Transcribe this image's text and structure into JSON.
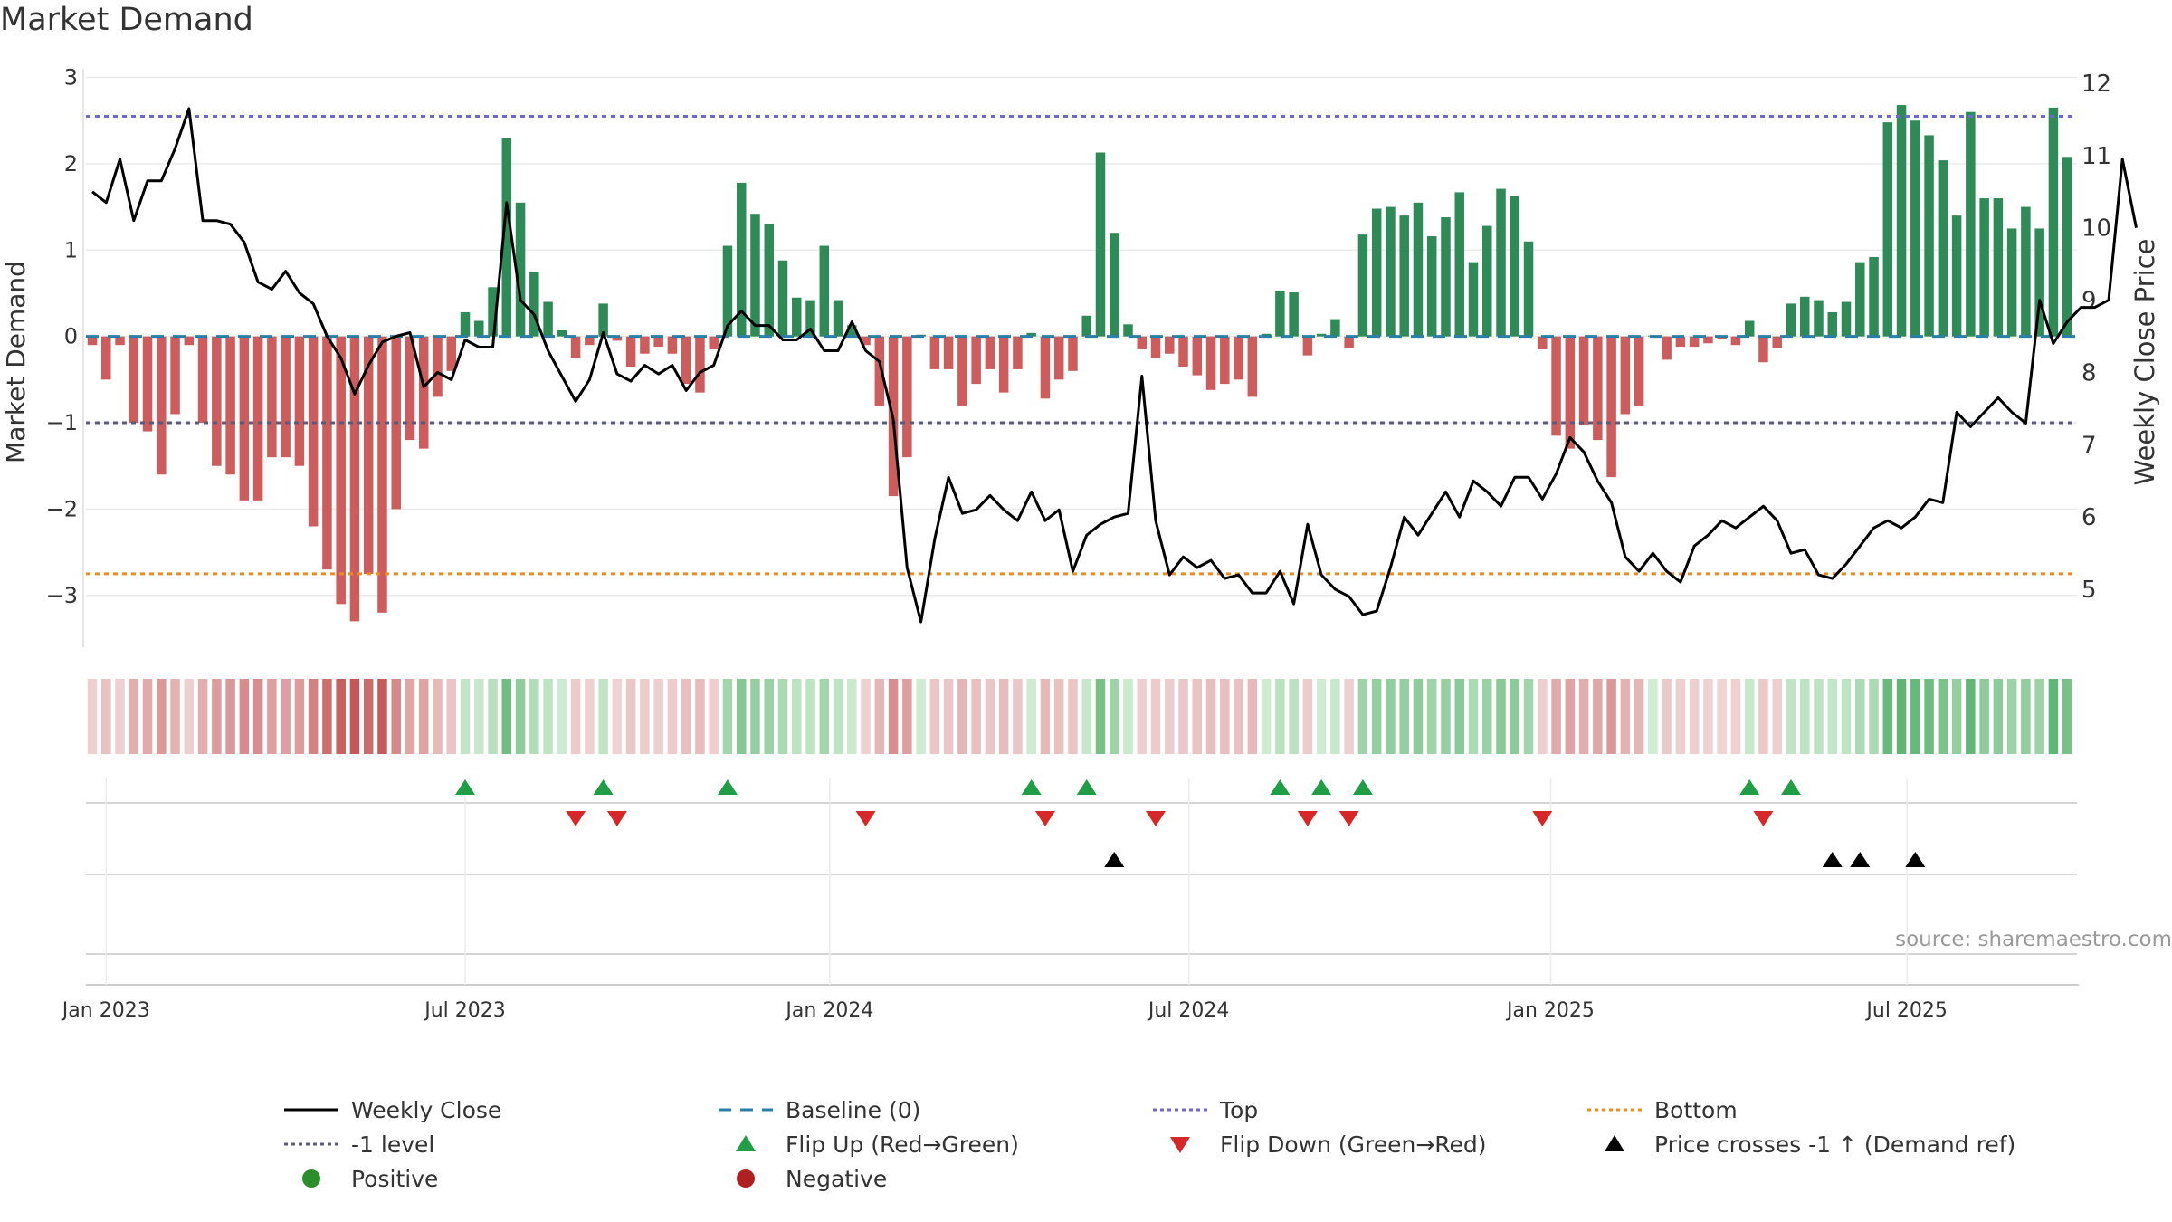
{
  "title": "Market Demand",
  "source": "source: sharemaestro.com",
  "chart_data": {
    "type": "bar+line",
    "title": "Market Demand",
    "start_date": "2022-12-26",
    "weeks": 146,
    "left_axis": {
      "label": "Market Demand",
      "lim": [
        -3.6,
        3.1
      ],
      "ticks": [
        3,
        2,
        1,
        0,
        -1,
        -2,
        -3
      ],
      "tick_labels": [
        "3",
        "2",
        "1",
        "0",
        "−1",
        "−2",
        "−3"
      ]
    },
    "right_axis": {
      "label": "Weekly Close Price",
      "lim": [
        4.2,
        12.2
      ],
      "ticks": [
        5,
        6,
        7,
        8,
        9,
        10,
        11,
        12
      ],
      "tick_labels": [
        "5",
        "6",
        "7",
        "8",
        "9",
        "10",
        "11",
        "12"
      ]
    },
    "x_ticks": [
      {
        "label": "Jan 2023",
        "week": 1
      },
      {
        "label": "Jul 2023",
        "week": 27
      },
      {
        "label": "Jan 2024",
        "week": 53.4
      },
      {
        "label": "Jul 2024",
        "week": 79.4
      },
      {
        "label": "Jan 2025",
        "week": 105.6
      },
      {
        "label": "Jul 2025",
        "week": 131.4
      }
    ],
    "reference_lines": {
      "top": 2.55,
      "bottom": -2.75,
      "minus_one": -1,
      "baseline": 0
    },
    "demand": [
      -0.1,
      -0.5,
      -0.1,
      -1.0,
      -1.1,
      -1.6,
      -0.9,
      -0.1,
      -1.0,
      -1.5,
      -1.6,
      -1.9,
      -1.9,
      -1.4,
      -1.4,
      -1.5,
      -2.2,
      -2.7,
      -3.1,
      -3.3,
      -2.75,
      -3.2,
      -2.0,
      -1.2,
      -1.3,
      -0.7,
      -0.4,
      0.28,
      0.18,
      0.57,
      2.3,
      1.55,
      0.75,
      0.4,
      0.07,
      -0.25,
      -0.1,
      0.38,
      -0.05,
      -0.35,
      -0.2,
      -0.12,
      -0.2,
      -0.55,
      -0.65,
      -0.15,
      1.05,
      1.78,
      1.42,
      1.3,
      0.88,
      0.45,
      0.42,
      1.05,
      0.42,
      0.13,
      -0.1,
      -0.8,
      -1.85,
      -1.4,
      0.02,
      -0.38,
      -0.38,
      -0.8,
      -0.55,
      -0.38,
      -0.65,
      -0.38,
      0.04,
      -0.72,
      -0.5,
      -0.4,
      0.24,
      2.13,
      1.2,
      0.14,
      -0.15,
      -0.25,
      -0.2,
      -0.35,
      -0.45,
      -0.62,
      -0.55,
      -0.5,
      -0.7,
      0.03,
      0.53,
      0.51,
      -0.22,
      0.03,
      0.2,
      -0.13,
      1.18,
      1.48,
      1.5,
      1.4,
      1.55,
      1.16,
      1.38,
      1.67,
      0.86,
      1.28,
      1.71,
      1.63,
      1.1,
      -0.15,
      -1.15,
      -1.3,
      -1.03,
      -1.2,
      -1.63,
      -0.9,
      -0.8,
      0.01,
      -0.27,
      -0.12,
      -0.12,
      -0.08,
      -0.03,
      -0.1,
      0.18,
      -0.3,
      -0.13,
      0.38,
      0.46,
      0.42,
      0.28,
      0.4,
      0.86,
      0.92,
      2.48,
      2.68,
      2.5,
      2.33,
      2.04,
      1.4,
      2.6,
      1.6,
      1.6,
      1.25,
      1.5,
      1.25,
      2.65,
      2.08
    ],
    "weekly_close": [
      10.5,
      10.35,
      10.95,
      10.1,
      10.65,
      10.65,
      11.1,
      11.65,
      10.1,
      10.1,
      10.05,
      9.8,
      9.25,
      9.15,
      9.4,
      9.1,
      8.95,
      8.5,
      8.2,
      7.7,
      8.1,
      8.42,
      8.5,
      8.55,
      7.8,
      8.0,
      7.9,
      8.45,
      8.35,
      8.35,
      10.35,
      9.0,
      8.8,
      8.3,
      7.95,
      7.6,
      7.9,
      8.55,
      7.98,
      7.88,
      8.1,
      7.98,
      8.1,
      7.75,
      8.0,
      8.1,
      8.65,
      8.85,
      8.65,
      8.65,
      8.45,
      8.45,
      8.6,
      8.3,
      8.3,
      8.7,
      8.3,
      8.15,
      7.35,
      5.3,
      4.55,
      5.7,
      6.55,
      6.05,
      6.1,
      6.3,
      6.1,
      5.95,
      6.35,
      5.95,
      6.1,
      5.25,
      5.75,
      5.9,
      6.0,
      6.05,
      7.95,
      5.95,
      5.2,
      5.45,
      5.3,
      5.4,
      5.15,
      5.2,
      4.95,
      4.95,
      5.25,
      4.8,
      5.9,
      5.2,
      5.0,
      4.9,
      4.65,
      4.7,
      5.3,
      6.0,
      5.75,
      6.05,
      6.35,
      6.0,
      6.5,
      6.35,
      6.15,
      6.55,
      6.55,
      6.25,
      6.6,
      7.1,
      6.9,
      6.5,
      6.2,
      5.45,
      5.25,
      5.5,
      5.25,
      5.1,
      5.6,
      5.75,
      5.95,
      5.85,
      6.0,
      6.15,
      5.95,
      5.5,
      5.55,
      5.2,
      5.15,
      5.35,
      5.6,
      5.85,
      5.95,
      5.85,
      6.0,
      6.25,
      6.2,
      7.45,
      7.25,
      7.45,
      7.65,
      7.45,
      7.3,
      9.0,
      8.4,
      8.7,
      8.9,
      8.9,
      9.0,
      10.95,
      10.0
    ],
    "flip_up_weeks": [
      27,
      37,
      46,
      68,
      72,
      86,
      89,
      92,
      120,
      123
    ],
    "flip_down_weeks": [
      35,
      38,
      56,
      69,
      77,
      88,
      91,
      105,
      121
    ],
    "cross_weeks": [
      74,
      126,
      128,
      132
    ]
  },
  "legend": [
    {
      "label": "Weekly Close",
      "icon": "line",
      "color": "#000000"
    },
    {
      "label": "Baseline (0)",
      "icon": "dash",
      "color": "#2a7fa8"
    },
    {
      "label": "Top",
      "icon": "dot",
      "color": "#6a6ad0"
    },
    {
      "label": "Bottom",
      "icon": "dot",
      "color": "#f08c1e"
    },
    {
      "label": "-1 level",
      "icon": "dot",
      "color": "#5a5a7a"
    },
    {
      "label": "Flip Up (Red→Green)",
      "icon": "tri-up",
      "color": "#1f9e45"
    },
    {
      "label": "Flip Down (Green→Red)",
      "icon": "tri-down",
      "color": "#d62828"
    },
    {
      "label": "Price crosses -1 ↑ (Demand ref)",
      "icon": "tri-up",
      "color": "#000000"
    },
    {
      "label": "Positive",
      "icon": "circle",
      "color": "#2a8f2a"
    },
    {
      "label": "Negative",
      "icon": "circle",
      "color": "#b02020"
    }
  ],
  "colors": {
    "positive_bar": "#2e8b57",
    "negative_bar": "#cd5c5c",
    "price_line": "#000000",
    "grid": "#e8e8e8"
  }
}
